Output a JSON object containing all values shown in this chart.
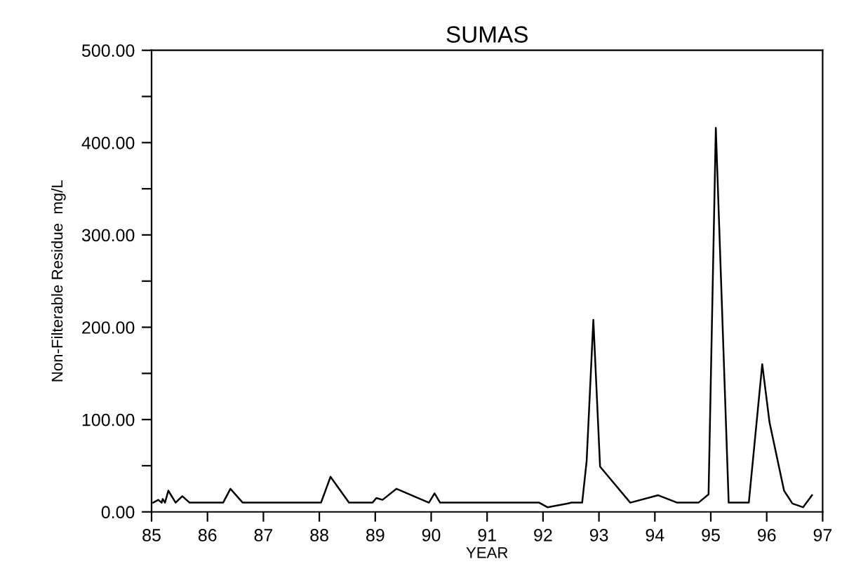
{
  "chart_data": {
    "type": "line",
    "title": "SUMAS",
    "xlabel": "YEAR",
    "ylabel": "Non-Filterable Residue  mg/L",
    "x": [
      85.03,
      85.12,
      85.18,
      85.2,
      85.24,
      85.3,
      85.43,
      85.55,
      85.68,
      86.28,
      86.41,
      86.63,
      88.03,
      88.2,
      88.53,
      88.95,
      89.02,
      89.13,
      89.38,
      89.96,
      90.06,
      90.16,
      91.93,
      92.08,
      92.43,
      92.51,
      92.7,
      92.78,
      92.9,
      93.02,
      93.56,
      94.06,
      94.4,
      94.78,
      94.96,
      95.09,
      95.32,
      95.68,
      95.92,
      96.05,
      96.31,
      96.46,
      96.65,
      96.81
    ],
    "series": [
      {
        "color": "#000000",
        "values": [
          10,
          13,
          10,
          14,
          10,
          23,
          10,
          17,
          10,
          10,
          25,
          10,
          10,
          38,
          10,
          10,
          15,
          13,
          25,
          10,
          20,
          10,
          10,
          5,
          9,
          10,
          10,
          55,
          208,
          49,
          10,
          18,
          10,
          10,
          19,
          416,
          10,
          10,
          160,
          97,
          23,
          9,
          5,
          18
        ]
      }
    ],
    "xlim": [
      85,
      97
    ],
    "xticks": [
      85,
      86,
      87,
      88,
      89,
      90,
      91,
      92,
      93,
      94,
      95,
      96,
      97
    ],
    "ylim": [
      0,
      500
    ],
    "yticks": [
      {
        "value": 0,
        "label": "0.00"
      },
      {
        "value": 50,
        "label": null
      },
      {
        "value": 100,
        "label": "100.00"
      },
      {
        "value": 150,
        "label": null
      },
      {
        "value": 200,
        "label": "200.00"
      },
      {
        "value": 250,
        "label": null
      },
      {
        "value": 300,
        "label": "300.00"
      },
      {
        "value": 350,
        "label": null
      },
      {
        "value": 400,
        "label": "400.00"
      },
      {
        "value": 450,
        "label": null
      },
      {
        "value": 500,
        "label": "500.00"
      }
    ],
    "grid": false,
    "legend": false,
    "marker": "none",
    "line_style": "solid"
  }
}
